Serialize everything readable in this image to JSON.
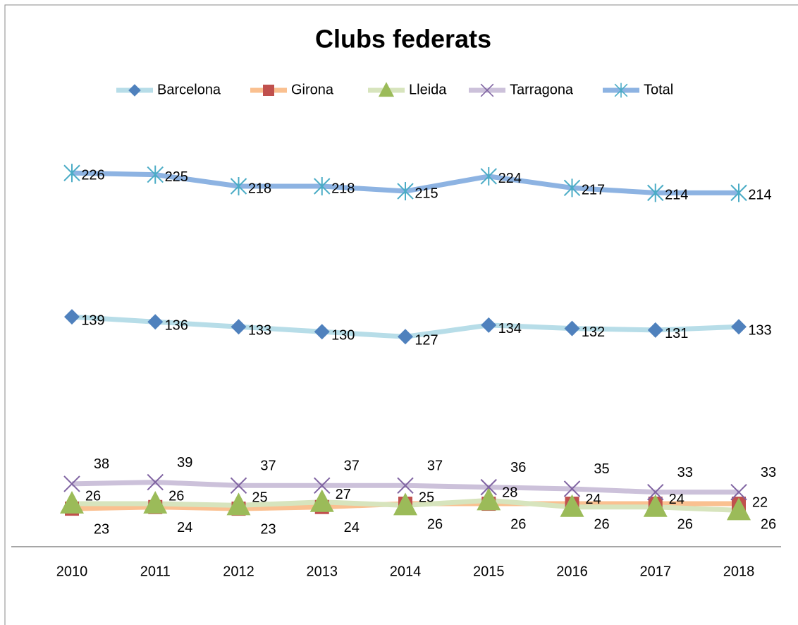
{
  "chart_data": {
    "type": "line",
    "title": "Clubs federats",
    "categories": [
      "2010",
      "2011",
      "2012",
      "2013",
      "2014",
      "2015",
      "2016",
      "2017",
      "2018"
    ],
    "ylim": [
      0,
      250
    ],
    "series": [
      {
        "name": "Barcelona",
        "color": "#b7dde8",
        "marker_color": "#4f81bd",
        "marker": "diamond",
        "values": [
          139,
          136,
          133,
          130,
          127,
          134,
          132,
          131,
          133
        ]
      },
      {
        "name": "Girona",
        "color": "#fac090",
        "marker_color": "#c0504d",
        "marker": "square",
        "values": [
          23,
          24,
          23,
          24,
          26,
          26,
          26,
          26,
          26
        ]
      },
      {
        "name": "Lleida",
        "color": "#d7e4bd",
        "marker_color": "#9bbb59",
        "marker": "triangle",
        "values": [
          26,
          26,
          25,
          27,
          25,
          28,
          24,
          24,
          22
        ]
      },
      {
        "name": "Tarragona",
        "color": "#ccc1da",
        "marker_color": "#8064a2",
        "marker": "x",
        "values": [
          38,
          39,
          37,
          37,
          37,
          36,
          35,
          33,
          33
        ]
      },
      {
        "name": "Total",
        "color": "#8db3e2",
        "marker_color": "#4bacc6",
        "marker": "star",
        "values": [
          226,
          225,
          218,
          218,
          215,
          224,
          217,
          214,
          214
        ]
      }
    ]
  }
}
